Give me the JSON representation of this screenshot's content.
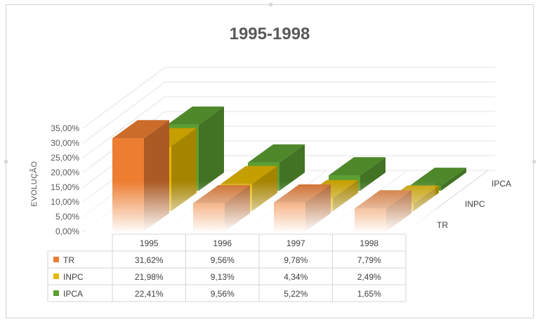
{
  "chart_data": {
    "type": "bar",
    "subtype": "3d-column-with-data-table",
    "title": "1995-1998",
    "ylabel": "EVOLUÇÃO",
    "ylim": [
      0,
      35
    ],
    "yticks": [
      "35,00%",
      "30,00%",
      "25,00%",
      "20,00%",
      "15,00%",
      "10,00%",
      "5,00%",
      "0,00%"
    ],
    "categories": [
      "1995",
      "1996",
      "1997",
      "1998"
    ],
    "depth_labels": [
      "IPCA",
      "INPC",
      "TR"
    ],
    "series": [
      {
        "name": "TR",
        "color": "#ED7D31",
        "values": [
          31.62,
          9.56,
          9.78,
          7.79
        ],
        "labels": [
          "31,62%",
          "9,56%",
          "9,78%",
          "7,79%"
        ]
      },
      {
        "name": "INPC",
        "color": "#E5B800",
        "values": [
          21.98,
          9.13,
          4.34,
          2.49
        ],
        "labels": [
          "21,98%",
          "9,13%",
          "4,34%",
          "2,49%"
        ]
      },
      {
        "name": "IPCA",
        "color": "#5B9E32",
        "values": [
          22.41,
          9.56,
          5.22,
          1.65
        ],
        "labels": [
          "22,41%",
          "9,56%",
          "5,22%",
          "1,65%"
        ]
      }
    ],
    "grid": true,
    "legend": "data-table"
  }
}
